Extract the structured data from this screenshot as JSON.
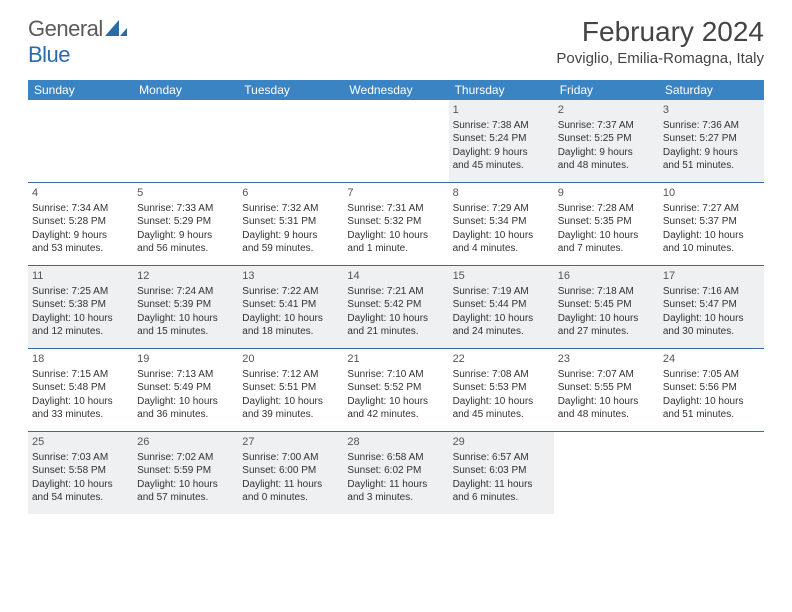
{
  "logo": {
    "general": "General",
    "blue": "Blue"
  },
  "title": "February 2024",
  "location": "Poviglio, Emilia-Romagna, Italy",
  "colors": {
    "header_bg": "#3b84c4",
    "header_text": "#ffffff",
    "shade_bg": "#eef0f1",
    "rule": "#3b6a9a",
    "logo_gray": "#5a5a5a",
    "logo_blue": "#2a6caa"
  },
  "weekdays": [
    "Sunday",
    "Monday",
    "Tuesday",
    "Wednesday",
    "Thursday",
    "Friday",
    "Saturday"
  ],
  "weeks": [
    [
      null,
      null,
      null,
      null,
      {
        "n": "1",
        "sr": "Sunrise: 7:38 AM",
        "ss": "Sunset: 5:24 PM",
        "dl1": "Daylight: 9 hours",
        "dl2": "and 45 minutes."
      },
      {
        "n": "2",
        "sr": "Sunrise: 7:37 AM",
        "ss": "Sunset: 5:25 PM",
        "dl1": "Daylight: 9 hours",
        "dl2": "and 48 minutes."
      },
      {
        "n": "3",
        "sr": "Sunrise: 7:36 AM",
        "ss": "Sunset: 5:27 PM",
        "dl1": "Daylight: 9 hours",
        "dl2": "and 51 minutes."
      }
    ],
    [
      {
        "n": "4",
        "sr": "Sunrise: 7:34 AM",
        "ss": "Sunset: 5:28 PM",
        "dl1": "Daylight: 9 hours",
        "dl2": "and 53 minutes."
      },
      {
        "n": "5",
        "sr": "Sunrise: 7:33 AM",
        "ss": "Sunset: 5:29 PM",
        "dl1": "Daylight: 9 hours",
        "dl2": "and 56 minutes."
      },
      {
        "n": "6",
        "sr": "Sunrise: 7:32 AM",
        "ss": "Sunset: 5:31 PM",
        "dl1": "Daylight: 9 hours",
        "dl2": "and 59 minutes."
      },
      {
        "n": "7",
        "sr": "Sunrise: 7:31 AM",
        "ss": "Sunset: 5:32 PM",
        "dl1": "Daylight: 10 hours",
        "dl2": "and 1 minute."
      },
      {
        "n": "8",
        "sr": "Sunrise: 7:29 AM",
        "ss": "Sunset: 5:34 PM",
        "dl1": "Daylight: 10 hours",
        "dl2": "and 4 minutes."
      },
      {
        "n": "9",
        "sr": "Sunrise: 7:28 AM",
        "ss": "Sunset: 5:35 PM",
        "dl1": "Daylight: 10 hours",
        "dl2": "and 7 minutes."
      },
      {
        "n": "10",
        "sr": "Sunrise: 7:27 AM",
        "ss": "Sunset: 5:37 PM",
        "dl1": "Daylight: 10 hours",
        "dl2": "and 10 minutes."
      }
    ],
    [
      {
        "n": "11",
        "sr": "Sunrise: 7:25 AM",
        "ss": "Sunset: 5:38 PM",
        "dl1": "Daylight: 10 hours",
        "dl2": "and 12 minutes."
      },
      {
        "n": "12",
        "sr": "Sunrise: 7:24 AM",
        "ss": "Sunset: 5:39 PM",
        "dl1": "Daylight: 10 hours",
        "dl2": "and 15 minutes."
      },
      {
        "n": "13",
        "sr": "Sunrise: 7:22 AM",
        "ss": "Sunset: 5:41 PM",
        "dl1": "Daylight: 10 hours",
        "dl2": "and 18 minutes."
      },
      {
        "n": "14",
        "sr": "Sunrise: 7:21 AM",
        "ss": "Sunset: 5:42 PM",
        "dl1": "Daylight: 10 hours",
        "dl2": "and 21 minutes."
      },
      {
        "n": "15",
        "sr": "Sunrise: 7:19 AM",
        "ss": "Sunset: 5:44 PM",
        "dl1": "Daylight: 10 hours",
        "dl2": "and 24 minutes."
      },
      {
        "n": "16",
        "sr": "Sunrise: 7:18 AM",
        "ss": "Sunset: 5:45 PM",
        "dl1": "Daylight: 10 hours",
        "dl2": "and 27 minutes."
      },
      {
        "n": "17",
        "sr": "Sunrise: 7:16 AM",
        "ss": "Sunset: 5:47 PM",
        "dl1": "Daylight: 10 hours",
        "dl2": "and 30 minutes."
      }
    ],
    [
      {
        "n": "18",
        "sr": "Sunrise: 7:15 AM",
        "ss": "Sunset: 5:48 PM",
        "dl1": "Daylight: 10 hours",
        "dl2": "and 33 minutes."
      },
      {
        "n": "19",
        "sr": "Sunrise: 7:13 AM",
        "ss": "Sunset: 5:49 PM",
        "dl1": "Daylight: 10 hours",
        "dl2": "and 36 minutes."
      },
      {
        "n": "20",
        "sr": "Sunrise: 7:12 AM",
        "ss": "Sunset: 5:51 PM",
        "dl1": "Daylight: 10 hours",
        "dl2": "and 39 minutes."
      },
      {
        "n": "21",
        "sr": "Sunrise: 7:10 AM",
        "ss": "Sunset: 5:52 PM",
        "dl1": "Daylight: 10 hours",
        "dl2": "and 42 minutes."
      },
      {
        "n": "22",
        "sr": "Sunrise: 7:08 AM",
        "ss": "Sunset: 5:53 PM",
        "dl1": "Daylight: 10 hours",
        "dl2": "and 45 minutes."
      },
      {
        "n": "23",
        "sr": "Sunrise: 7:07 AM",
        "ss": "Sunset: 5:55 PM",
        "dl1": "Daylight: 10 hours",
        "dl2": "and 48 minutes."
      },
      {
        "n": "24",
        "sr": "Sunrise: 7:05 AM",
        "ss": "Sunset: 5:56 PM",
        "dl1": "Daylight: 10 hours",
        "dl2": "and 51 minutes."
      }
    ],
    [
      {
        "n": "25",
        "sr": "Sunrise: 7:03 AM",
        "ss": "Sunset: 5:58 PM",
        "dl1": "Daylight: 10 hours",
        "dl2": "and 54 minutes."
      },
      {
        "n": "26",
        "sr": "Sunrise: 7:02 AM",
        "ss": "Sunset: 5:59 PM",
        "dl1": "Daylight: 10 hours",
        "dl2": "and 57 minutes."
      },
      {
        "n": "27",
        "sr": "Sunrise: 7:00 AM",
        "ss": "Sunset: 6:00 PM",
        "dl1": "Daylight: 11 hours",
        "dl2": "and 0 minutes."
      },
      {
        "n": "28",
        "sr": "Sunrise: 6:58 AM",
        "ss": "Sunset: 6:02 PM",
        "dl1": "Daylight: 11 hours",
        "dl2": "and 3 minutes."
      },
      {
        "n": "29",
        "sr": "Sunrise: 6:57 AM",
        "ss": "Sunset: 6:03 PM",
        "dl1": "Daylight: 11 hours",
        "dl2": "and 6 minutes."
      },
      null,
      null
    ]
  ],
  "shaded_weeks": [
    0,
    2,
    4
  ]
}
